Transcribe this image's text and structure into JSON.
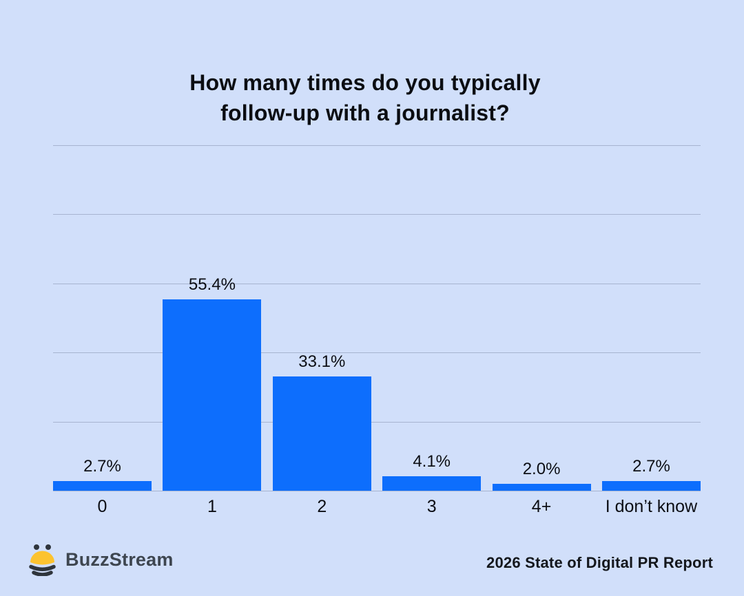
{
  "header": {
    "title_line1": "How many times do you typically",
    "title_line2": "follow-up with a journalist?"
  },
  "chart_data": {
    "type": "bar",
    "title": "How many times do you typically follow-up with a journalist?",
    "categories": [
      "0",
      "1",
      "2",
      "3",
      "4+",
      "I don’t know"
    ],
    "values": [
      2.7,
      55.4,
      33.1,
      4.1,
      2.0,
      2.7
    ],
    "value_labels": [
      "2.7%",
      "55.4%",
      "33.1%",
      "4.1%",
      "2.0%",
      "2.7%"
    ],
    "xlabel": "",
    "ylabel": "",
    "ylim": [
      0,
      100
    ],
    "grid": "horizontal gridlines every 20%, no y tick labels",
    "legend": "none",
    "bar_color": "#0d6efd",
    "background_color": "#d1dffa"
  },
  "footer": {
    "brand": "BuzzStream",
    "report": "2026 State of Digital PR Report"
  },
  "colors": {
    "accent_blue": "#0d6efd",
    "background": "#d1dffa",
    "gridline": "#a7b4d0",
    "text": "#0c0e14",
    "brand_text": "#3e4650",
    "bee_yellow": "#fcc32f",
    "bee_dark": "#2f353c"
  }
}
